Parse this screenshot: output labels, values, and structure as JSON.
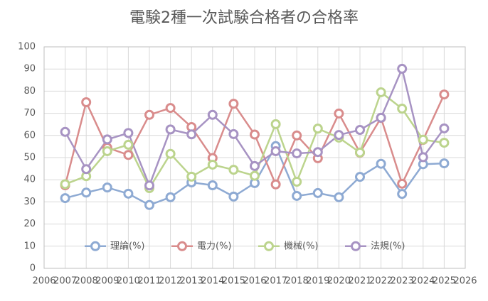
{
  "chart_data": {
    "type": "line",
    "title": "電験2種一次試験合格者の合格率",
    "x": [
      2007,
      2008,
      2009,
      2010,
      2011,
      2012,
      2013,
      2014,
      2015,
      2016,
      2017,
      2018,
      2019,
      2020,
      2021,
      2022,
      2023,
      2024,
      2025
    ],
    "series": [
      {
        "name": "理論(%)",
        "color": "#8eaad3",
        "values": [
          31.7,
          34.2,
          36.5,
          33.7,
          28.6,
          32.1,
          38.8,
          37.5,
          32.4,
          38.5,
          55.2,
          32.7,
          34.0,
          32.1,
          41.3,
          47.2,
          33.6,
          47.0,
          47.4
        ]
      },
      {
        "name": "電力(%)",
        "color": "#d98c8c",
        "values": [
          37.5,
          75.0,
          54.5,
          51.2,
          69.3,
          72.4,
          63.8,
          49.8,
          74.3,
          60.4,
          37.9,
          60.0,
          49.7,
          69.9,
          52.2,
          67.9,
          38.2,
          58.0,
          78.5
        ]
      },
      {
        "name": "機械(%)",
        "color": "#bcd48d",
        "values": [
          38.0,
          41.6,
          52.9,
          55.8,
          36.2,
          51.7,
          41.4,
          46.8,
          44.5,
          41.8,
          65.1,
          39.1,
          63.1,
          59.0,
          52.3,
          79.5,
          72.1,
          58.1,
          56.7
        ]
      },
      {
        "name": "法規(%)",
        "color": "#a793c3",
        "values": [
          61.6,
          44.8,
          58.2,
          61.1,
          37.4,
          62.7,
          60.5,
          69.3,
          60.6,
          46.2,
          52.9,
          51.9,
          52.5,
          60.2,
          62.5,
          68.0,
          90.1,
          50.2,
          63.2
        ]
      }
    ],
    "xlim": [
      2006,
      2026
    ],
    "xticks": [
      2006,
      2007,
      2008,
      2009,
      2010,
      2011,
      2012,
      2013,
      2014,
      2015,
      2016,
      2017,
      2018,
      2019,
      2020,
      2021,
      2022,
      2023,
      2024,
      2025,
      2026
    ],
    "ylim": [
      0,
      100
    ],
    "yticks": [
      0,
      10,
      20,
      30,
      40,
      50,
      60,
      70,
      80,
      90,
      100
    ],
    "grid": true,
    "legend": "lower center"
  }
}
